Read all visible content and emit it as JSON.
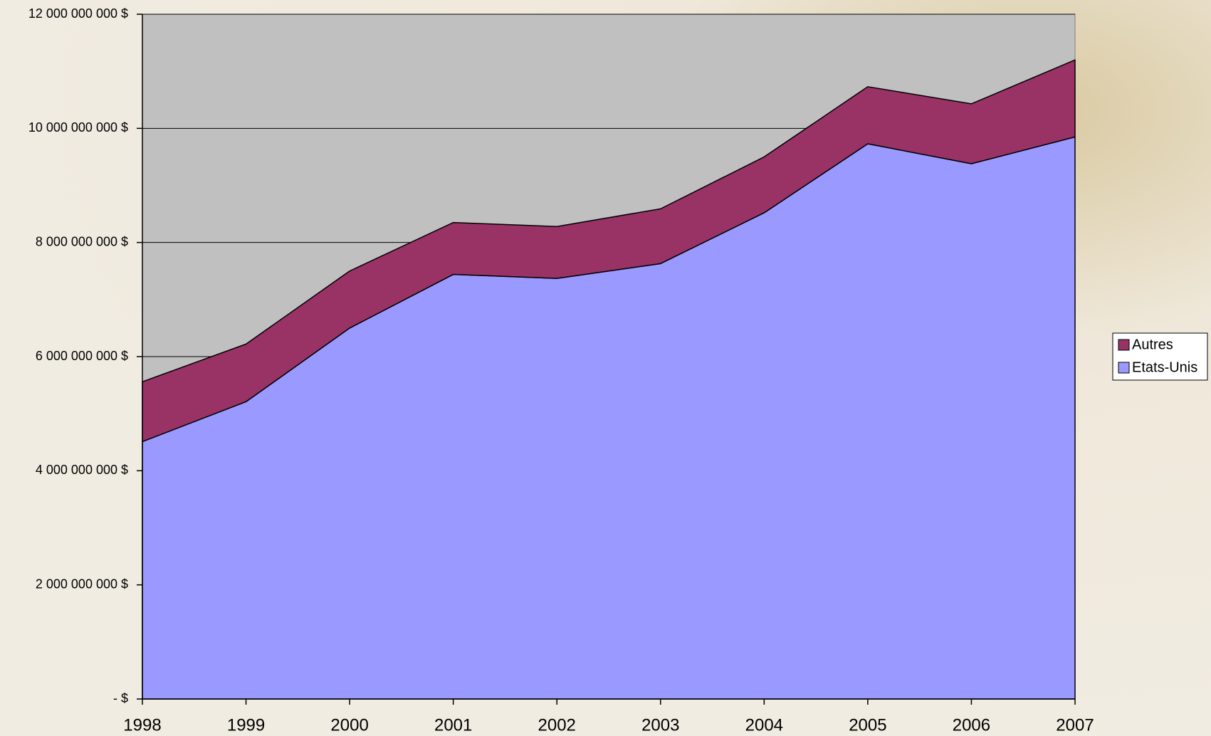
{
  "chart_data": {
    "type": "stacked-area",
    "categories": [
      "1998",
      "1999",
      "2000",
      "2001",
      "2002",
      "2003",
      "2004",
      "2005",
      "2006",
      "2007"
    ],
    "series": [
      {
        "name": "Etats-Unis",
        "color": "#9999ff",
        "values": [
          4510000000,
          5210000000,
          6500000000,
          7440000000,
          7370000000,
          7630000000,
          8520000000,
          9730000000,
          9380000000,
          9850000000
        ]
      },
      {
        "name": "Autres",
        "color": "#993366",
        "values": [
          1050000000,
          1010000000,
          1000000000,
          910000000,
          910000000,
          960000000,
          980000000,
          1000000000,
          1050000000,
          1350000000
        ]
      }
    ],
    "ylim": [
      0,
      12000000000
    ],
    "yticks": [
      {
        "value": 0,
        "label": "- $"
      },
      {
        "value": 2000000000,
        "label": "2 000 000 000  $"
      },
      {
        "value": 4000000000,
        "label": "4 000 000 000  $"
      },
      {
        "value": 6000000000,
        "label": "6 000 000 000  $"
      },
      {
        "value": 8000000000,
        "label": "8 000 000 000  $"
      },
      {
        "value": 10000000000,
        "label": "10 000 000 000  $"
      },
      {
        "value": 12000000000,
        "label": "12 000 000 000  $"
      }
    ],
    "grid": true,
    "legend": "right",
    "plot_background": "#c0c0c0"
  }
}
